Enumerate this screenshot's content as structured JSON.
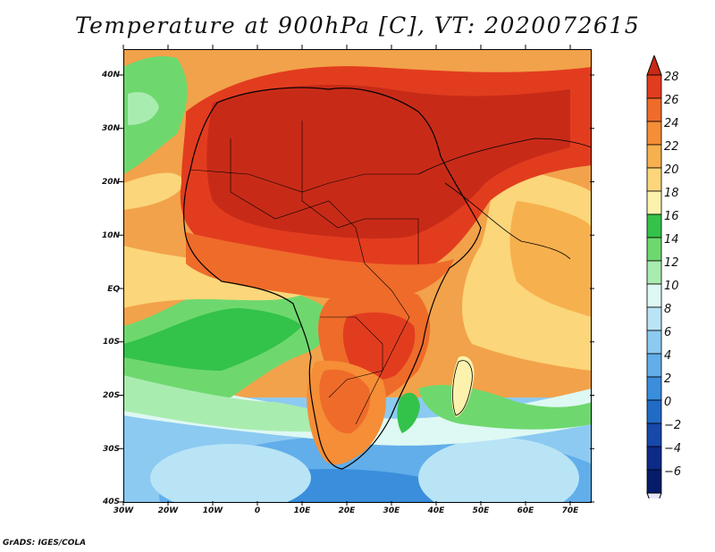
{
  "title": "Temperature at 900hPa [C], VT: 2020072615",
  "footer": "GrADS: IGES/COLA",
  "y_axis": [
    "40N",
    "30N",
    "20N",
    "10N",
    "EQ",
    "10S",
    "20S",
    "30S",
    "40S"
  ],
  "x_axis": [
    "30W",
    "20W",
    "10W",
    "0",
    "10E",
    "20E",
    "30E",
    "40E",
    "50E",
    "60E",
    "70E"
  ],
  "colorbar": {
    "labels": [
      "28",
      "26",
      "24",
      "22",
      "20",
      "18",
      "16",
      "14",
      "12",
      "10",
      "8",
      "6",
      "4",
      "2",
      "0",
      "−2",
      "−4",
      "−6"
    ],
    "colors": [
      "#c72b18",
      "#e23c1f",
      "#ef6b2a",
      "#f58e36",
      "#f7b04e",
      "#fbd67a",
      "#fdf2ad",
      "#33c24a",
      "#6ed86e",
      "#a9ecb0",
      "#def8f3",
      "#b9e4f6",
      "#8ccaf1",
      "#61aeea",
      "#3a8edc",
      "#216bc7",
      "#1748aa",
      "#0d2a88",
      "#051c6b"
    ],
    "under_color": "#e8e6fb"
  }
}
